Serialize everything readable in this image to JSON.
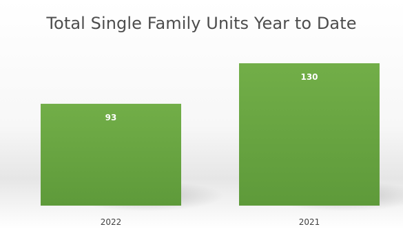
{
  "chart_data": {
    "type": "bar",
    "title": "Total Single Family Units Year to Date",
    "categories": [
      "2022",
      "2021"
    ],
    "values": [
      93,
      130
    ],
    "ylim": [
      0,
      160
    ],
    "grid": false,
    "legend": "none",
    "bar_color": "#6aa543"
  }
}
